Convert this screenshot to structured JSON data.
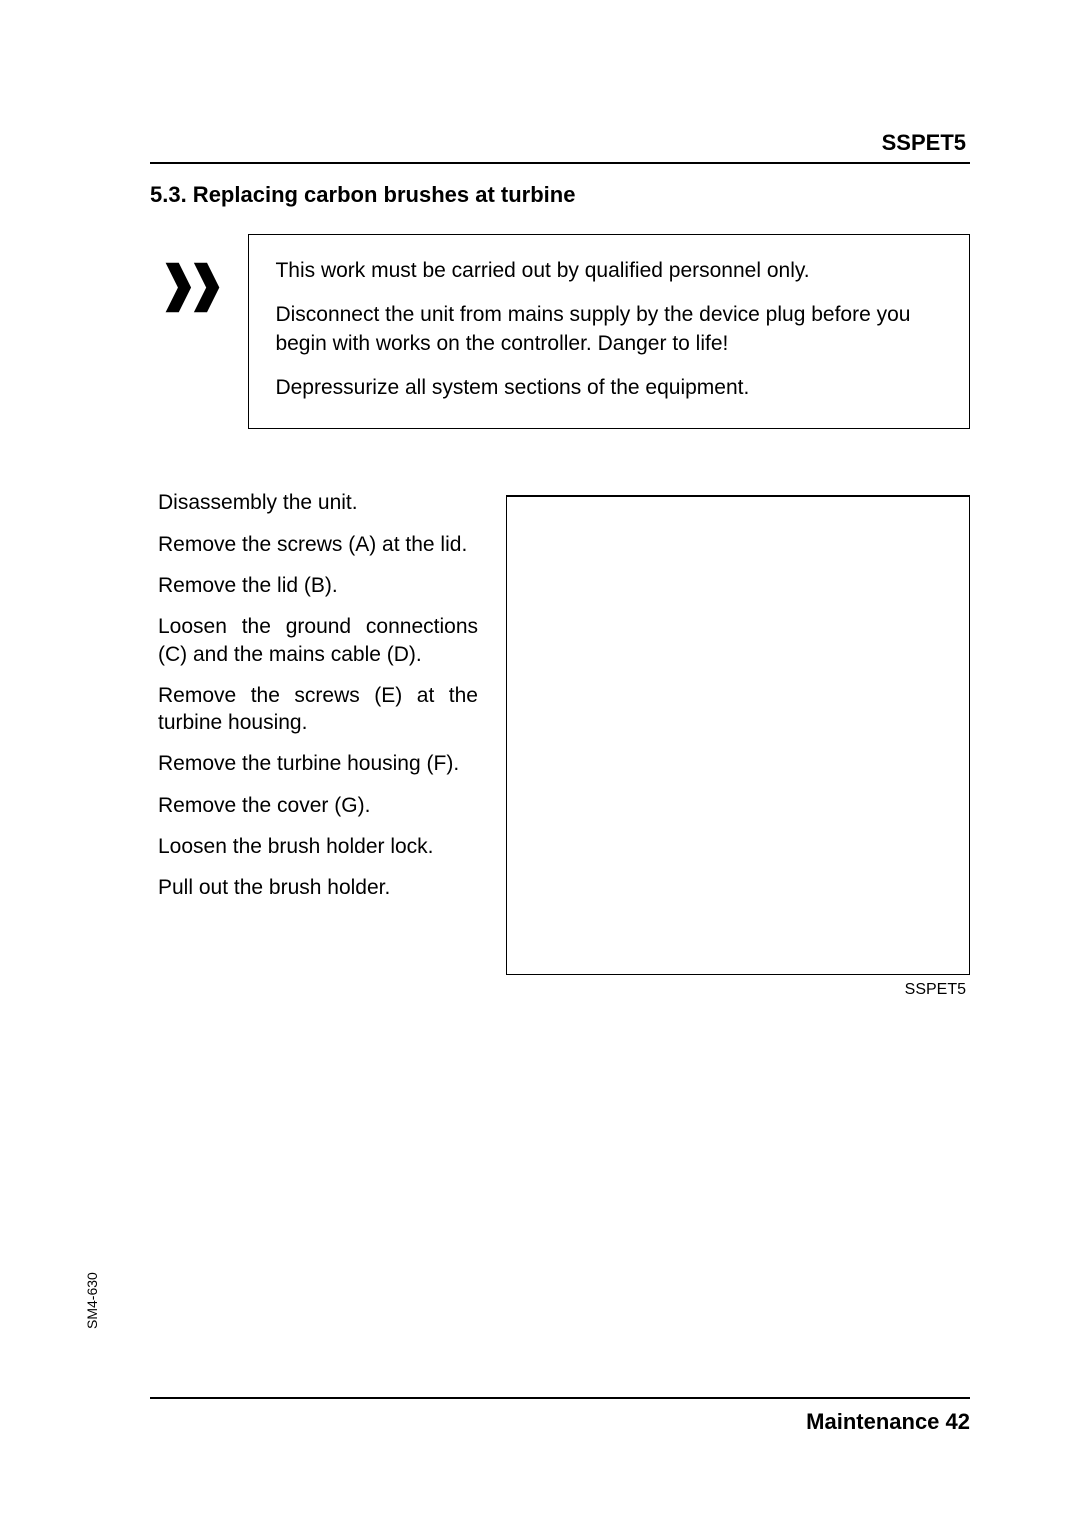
{
  "header": {
    "model": "SSPET5"
  },
  "section": {
    "heading": "5.3. Replacing carbon brushes at turbine"
  },
  "warning": {
    "p1": "This work must be carried out by qualified personnel only.",
    "p2": "Disconnect the unit from mains supply by the device plug before you begin with works on the controller. Danger to life!",
    "p3": "Depressurize all system sections of the equipment."
  },
  "instructions": {
    "step1": "Disassembly the unit.",
    "step2": "Remove the screws (A) at the lid.",
    "step3": "Remove the lid (B).",
    "step4": "Loosen the ground connections (C) and the mains cable (D).",
    "step5": "Remove the screws (E) at the turbine housing.",
    "step6": "Remove the turbine housing (F).",
    "step7": "Remove the cover (G).",
    "step8": "Loosen the brush holder lock.",
    "step9": "Pull out the brush holder."
  },
  "figure": {
    "caption": "SSPET5"
  },
  "side_code": "SM4-630",
  "footer": {
    "text": "Maintenance 42"
  }
}
